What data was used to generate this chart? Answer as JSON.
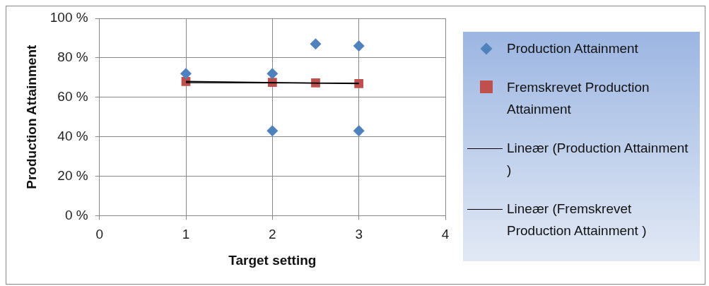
{
  "chart_data": {
    "type": "scatter",
    "xlabel": "Target setting",
    "ylabel": "Production Attainment",
    "xlim": [
      0,
      4
    ],
    "xticks": [
      0,
      1,
      2,
      3,
      4
    ],
    "ylim": [
      0,
      100
    ],
    "yticks": [
      {
        "value": 0,
        "label": "0 %"
      },
      {
        "value": 20,
        "label": "20 %"
      },
      {
        "value": 40,
        "label": "40 %"
      },
      {
        "value": 60,
        "label": "60 %"
      },
      {
        "value": 80,
        "label": "80 %"
      },
      {
        "value": 100,
        "label": "100 %"
      }
    ],
    "grid": true,
    "legend": "right",
    "series": [
      {
        "name": "Production Attainment",
        "marker": "diamond",
        "color": "#4f81bd",
        "x": [
          1,
          2,
          2,
          2.5,
          3,
          3
        ],
        "values": [
          72,
          72,
          43,
          87,
          86,
          43
        ]
      },
      {
        "name": "Fremskrevet Production Attainment",
        "marker": "square",
        "color": "#c0504d",
        "x": [
          1,
          2,
          2.5,
          3
        ],
        "values": [
          68,
          67.6,
          67.3,
          66.9
        ]
      },
      {
        "name": "Lineær (Production Attainment )",
        "type": "line",
        "marker": "none",
        "color": "#000000",
        "x": [
          1,
          3
        ],
        "values": [
          67.4,
          67.2
        ]
      },
      {
        "name": "Lineær (Fremskrevet Production Attainment )",
        "type": "line",
        "marker": "none",
        "color": "#000000",
        "x": [
          1,
          3
        ],
        "values": [
          68.1,
          66.9
        ]
      }
    ]
  }
}
